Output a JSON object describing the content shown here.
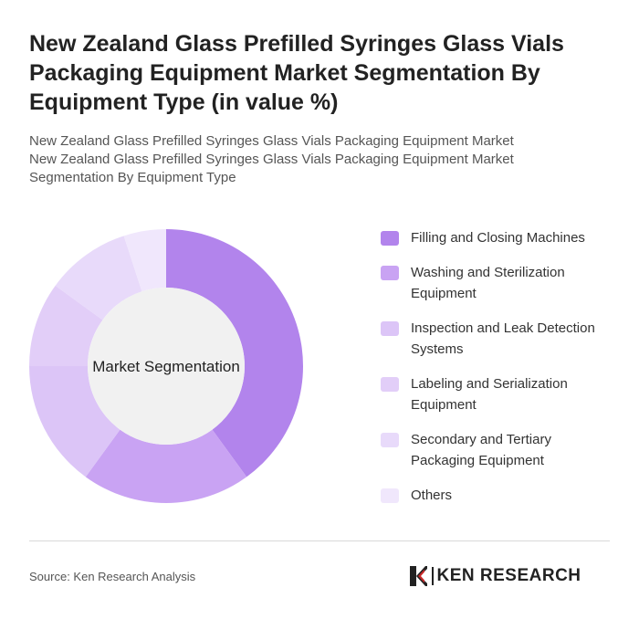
{
  "title": "New Zealand Glass Prefilled Syringes Glass Vials Packaging Equipment Market Segmentation By Equipment Type (in value %)",
  "subtitle_lines": [
    "New Zealand Glass Prefilled Syringes Glass Vials Packaging Equipment Market",
    "New Zealand Glass Prefilled Syringes Glass Vials Packaging Equipment Market",
    "Segmentation By Equipment Type"
  ],
  "chart_data": {
    "type": "pie",
    "style": "donut",
    "center_label": "Market Segmentation",
    "legend_position": "right",
    "categories": [
      "Filling and Closing Machines",
      "Washing and Sterilization Equipment",
      "Inspection and Leak Detection Systems",
      "Labeling and Serialization Equipment",
      "Secondary and Tertiary Packaging Equipment",
      "Others"
    ],
    "values": [
      40,
      20,
      15,
      10,
      10,
      5
    ],
    "colors": [
      "#b284ec",
      "#c9a3f3",
      "#dcc5f7",
      "#e2cef8",
      "#e8dafa",
      "#f0e7fc"
    ]
  },
  "footer": {
    "source": "Source: Ken Research Analysis",
    "logo_text": "KEN RESEARCH",
    "logo_icon": "ken-research-k-icon"
  }
}
